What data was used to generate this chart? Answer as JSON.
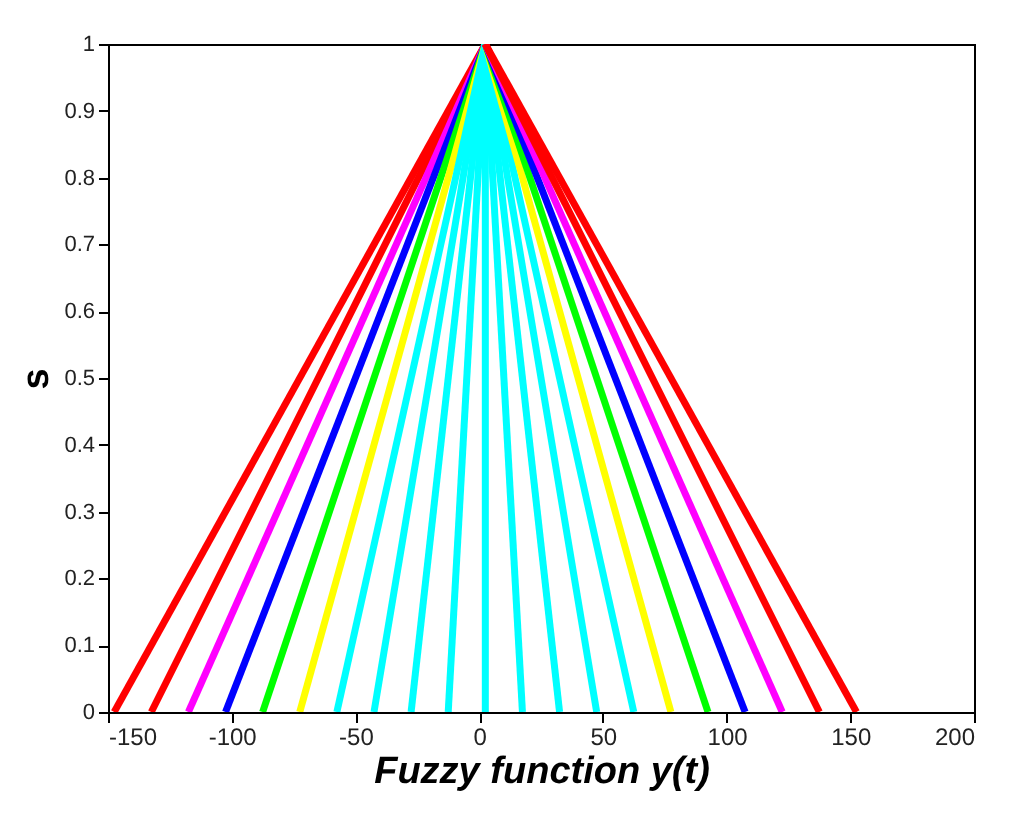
{
  "chart_data": {
    "type": "line",
    "xlabel": "Fuzzy function y(t)",
    "ylabel": "s",
    "xlim": [
      -150,
      200
    ],
    "ylim": [
      0,
      1
    ],
    "xticks": [
      -150,
      -100,
      -50,
      0,
      50,
      100,
      150,
      200
    ],
    "yticks": [
      0,
      0.1,
      0.2,
      0.3,
      0.4,
      0.5,
      0.6,
      0.7,
      0.8,
      0.9,
      1
    ],
    "grid": false,
    "legend": false,
    "series": [
      {
        "color": "#ff0000",
        "x": [
          -147.5,
          2.5
        ],
        "values": [
          0,
          1
        ]
      },
      {
        "color": "#ff0000",
        "x": [
          -132.5,
          2.5
        ],
        "values": [
          0,
          1
        ]
      },
      {
        "color": "#ff00ff",
        "x": [
          -117.5,
          2.5
        ],
        "values": [
          0,
          1
        ]
      },
      {
        "color": "#0000ff",
        "x": [
          -102.5,
          2.5
        ],
        "values": [
          0,
          1
        ]
      },
      {
        "color": "#00ff00",
        "x": [
          -87.5,
          2.5
        ],
        "values": [
          0,
          1
        ]
      },
      {
        "color": "#ffff00",
        "x": [
          -72.5,
          2.5
        ],
        "values": [
          0,
          1
        ]
      },
      {
        "color": "#00ffff",
        "x": [
          -57.5,
          2.5
        ],
        "values": [
          0,
          1
        ]
      },
      {
        "color": "#00ffff",
        "x": [
          -42.5,
          2.5
        ],
        "values": [
          0,
          1
        ]
      },
      {
        "color": "#00ffff",
        "x": [
          -27.5,
          2.5
        ],
        "values": [
          0,
          1
        ]
      },
      {
        "color": "#00ffff",
        "x": [
          -12.5,
          2.5
        ],
        "values": [
          0,
          1
        ]
      },
      {
        "color": "#00ffff",
        "x": [
          2.5,
          2.5
        ],
        "values": [
          0,
          1
        ]
      },
      {
        "color": "#00ffff",
        "x": [
          17.5,
          2.5
        ],
        "values": [
          0,
          1
        ]
      },
      {
        "color": "#00ffff",
        "x": [
          32.5,
          2.5
        ],
        "values": [
          0,
          1
        ]
      },
      {
        "color": "#00ffff",
        "x": [
          47.5,
          2.5
        ],
        "values": [
          0,
          1
        ]
      },
      {
        "color": "#00ffff",
        "x": [
          62.5,
          2.5
        ],
        "values": [
          0,
          1
        ]
      },
      {
        "color": "#ffff00",
        "x": [
          77.5,
          2.5
        ],
        "values": [
          0,
          1
        ]
      },
      {
        "color": "#00ff00",
        "x": [
          92.5,
          2.5
        ],
        "values": [
          0,
          1
        ]
      },
      {
        "color": "#0000ff",
        "x": [
          107.5,
          2.5
        ],
        "values": [
          0,
          1
        ]
      },
      {
        "color": "#ff00ff",
        "x": [
          122.5,
          2.5
        ],
        "values": [
          0,
          1
        ]
      },
      {
        "color": "#ff0000",
        "x": [
          137.5,
          2.5
        ],
        "values": [
          0,
          1
        ]
      },
      {
        "color": "#ff0000",
        "x": [
          152.5,
          2.5
        ],
        "values": [
          0,
          1
        ]
      }
    ]
  }
}
